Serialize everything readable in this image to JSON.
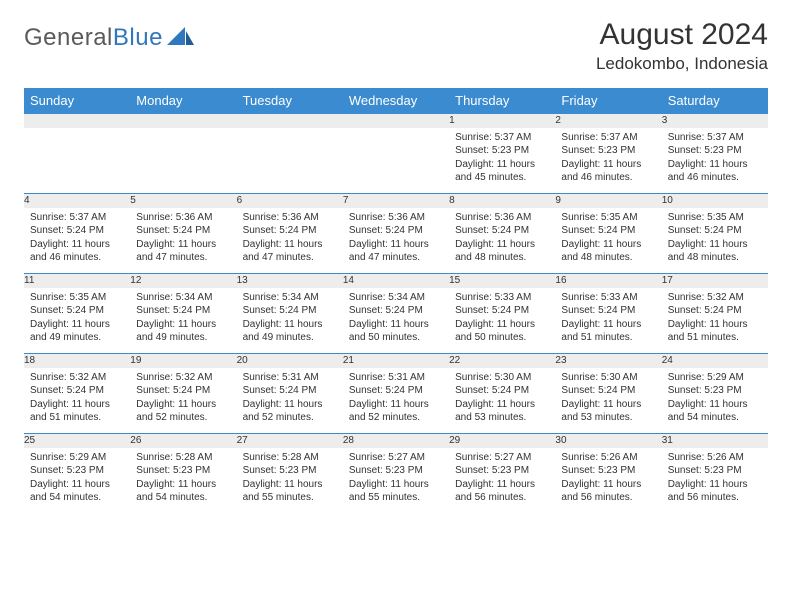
{
  "brand": {
    "part1": "General",
    "part2": "Blue"
  },
  "title": "August 2024",
  "location": "Ledokombo, Indonesia",
  "colors": {
    "header_bg": "#3a8bd0",
    "header_text": "#ffffff",
    "daynum_bg": "#ededed",
    "row_border": "#3a8bd0",
    "text": "#333333",
    "logo_gray": "#5a5a5a",
    "logo_blue": "#2f78bd",
    "page_bg": "#ffffff"
  },
  "fonts": {
    "title_size": 30,
    "location_size": 17,
    "header_size": 13,
    "cell_size": 10
  },
  "day_headers": [
    "Sunday",
    "Monday",
    "Tuesday",
    "Wednesday",
    "Thursday",
    "Friday",
    "Saturday"
  ],
  "weeks": [
    [
      null,
      null,
      null,
      null,
      {
        "n": "1",
        "sr": "Sunrise: 5:37 AM",
        "ss": "Sunset: 5:23 PM",
        "dl": "Daylight: 11 hours and 45 minutes."
      },
      {
        "n": "2",
        "sr": "Sunrise: 5:37 AM",
        "ss": "Sunset: 5:23 PM",
        "dl": "Daylight: 11 hours and 46 minutes."
      },
      {
        "n": "3",
        "sr": "Sunrise: 5:37 AM",
        "ss": "Sunset: 5:23 PM",
        "dl": "Daylight: 11 hours and 46 minutes."
      }
    ],
    [
      {
        "n": "4",
        "sr": "Sunrise: 5:37 AM",
        "ss": "Sunset: 5:24 PM",
        "dl": "Daylight: 11 hours and 46 minutes."
      },
      {
        "n": "5",
        "sr": "Sunrise: 5:36 AM",
        "ss": "Sunset: 5:24 PM",
        "dl": "Daylight: 11 hours and 47 minutes."
      },
      {
        "n": "6",
        "sr": "Sunrise: 5:36 AM",
        "ss": "Sunset: 5:24 PM",
        "dl": "Daylight: 11 hours and 47 minutes."
      },
      {
        "n": "7",
        "sr": "Sunrise: 5:36 AM",
        "ss": "Sunset: 5:24 PM",
        "dl": "Daylight: 11 hours and 47 minutes."
      },
      {
        "n": "8",
        "sr": "Sunrise: 5:36 AM",
        "ss": "Sunset: 5:24 PM",
        "dl": "Daylight: 11 hours and 48 minutes."
      },
      {
        "n": "9",
        "sr": "Sunrise: 5:35 AM",
        "ss": "Sunset: 5:24 PM",
        "dl": "Daylight: 11 hours and 48 minutes."
      },
      {
        "n": "10",
        "sr": "Sunrise: 5:35 AM",
        "ss": "Sunset: 5:24 PM",
        "dl": "Daylight: 11 hours and 48 minutes."
      }
    ],
    [
      {
        "n": "11",
        "sr": "Sunrise: 5:35 AM",
        "ss": "Sunset: 5:24 PM",
        "dl": "Daylight: 11 hours and 49 minutes."
      },
      {
        "n": "12",
        "sr": "Sunrise: 5:34 AM",
        "ss": "Sunset: 5:24 PM",
        "dl": "Daylight: 11 hours and 49 minutes."
      },
      {
        "n": "13",
        "sr": "Sunrise: 5:34 AM",
        "ss": "Sunset: 5:24 PM",
        "dl": "Daylight: 11 hours and 49 minutes."
      },
      {
        "n": "14",
        "sr": "Sunrise: 5:34 AM",
        "ss": "Sunset: 5:24 PM",
        "dl": "Daylight: 11 hours and 50 minutes."
      },
      {
        "n": "15",
        "sr": "Sunrise: 5:33 AM",
        "ss": "Sunset: 5:24 PM",
        "dl": "Daylight: 11 hours and 50 minutes."
      },
      {
        "n": "16",
        "sr": "Sunrise: 5:33 AM",
        "ss": "Sunset: 5:24 PM",
        "dl": "Daylight: 11 hours and 51 minutes."
      },
      {
        "n": "17",
        "sr": "Sunrise: 5:32 AM",
        "ss": "Sunset: 5:24 PM",
        "dl": "Daylight: 11 hours and 51 minutes."
      }
    ],
    [
      {
        "n": "18",
        "sr": "Sunrise: 5:32 AM",
        "ss": "Sunset: 5:24 PM",
        "dl": "Daylight: 11 hours and 51 minutes."
      },
      {
        "n": "19",
        "sr": "Sunrise: 5:32 AM",
        "ss": "Sunset: 5:24 PM",
        "dl": "Daylight: 11 hours and 52 minutes."
      },
      {
        "n": "20",
        "sr": "Sunrise: 5:31 AM",
        "ss": "Sunset: 5:24 PM",
        "dl": "Daylight: 11 hours and 52 minutes."
      },
      {
        "n": "21",
        "sr": "Sunrise: 5:31 AM",
        "ss": "Sunset: 5:24 PM",
        "dl": "Daylight: 11 hours and 52 minutes."
      },
      {
        "n": "22",
        "sr": "Sunrise: 5:30 AM",
        "ss": "Sunset: 5:24 PM",
        "dl": "Daylight: 11 hours and 53 minutes."
      },
      {
        "n": "23",
        "sr": "Sunrise: 5:30 AM",
        "ss": "Sunset: 5:24 PM",
        "dl": "Daylight: 11 hours and 53 minutes."
      },
      {
        "n": "24",
        "sr": "Sunrise: 5:29 AM",
        "ss": "Sunset: 5:23 PM",
        "dl": "Daylight: 11 hours and 54 minutes."
      }
    ],
    [
      {
        "n": "25",
        "sr": "Sunrise: 5:29 AM",
        "ss": "Sunset: 5:23 PM",
        "dl": "Daylight: 11 hours and 54 minutes."
      },
      {
        "n": "26",
        "sr": "Sunrise: 5:28 AM",
        "ss": "Sunset: 5:23 PM",
        "dl": "Daylight: 11 hours and 54 minutes."
      },
      {
        "n": "27",
        "sr": "Sunrise: 5:28 AM",
        "ss": "Sunset: 5:23 PM",
        "dl": "Daylight: 11 hours and 55 minutes."
      },
      {
        "n": "28",
        "sr": "Sunrise: 5:27 AM",
        "ss": "Sunset: 5:23 PM",
        "dl": "Daylight: 11 hours and 55 minutes."
      },
      {
        "n": "29",
        "sr": "Sunrise: 5:27 AM",
        "ss": "Sunset: 5:23 PM",
        "dl": "Daylight: 11 hours and 56 minutes."
      },
      {
        "n": "30",
        "sr": "Sunrise: 5:26 AM",
        "ss": "Sunset: 5:23 PM",
        "dl": "Daylight: 11 hours and 56 minutes."
      },
      {
        "n": "31",
        "sr": "Sunrise: 5:26 AM",
        "ss": "Sunset: 5:23 PM",
        "dl": "Daylight: 11 hours and 56 minutes."
      }
    ]
  ]
}
